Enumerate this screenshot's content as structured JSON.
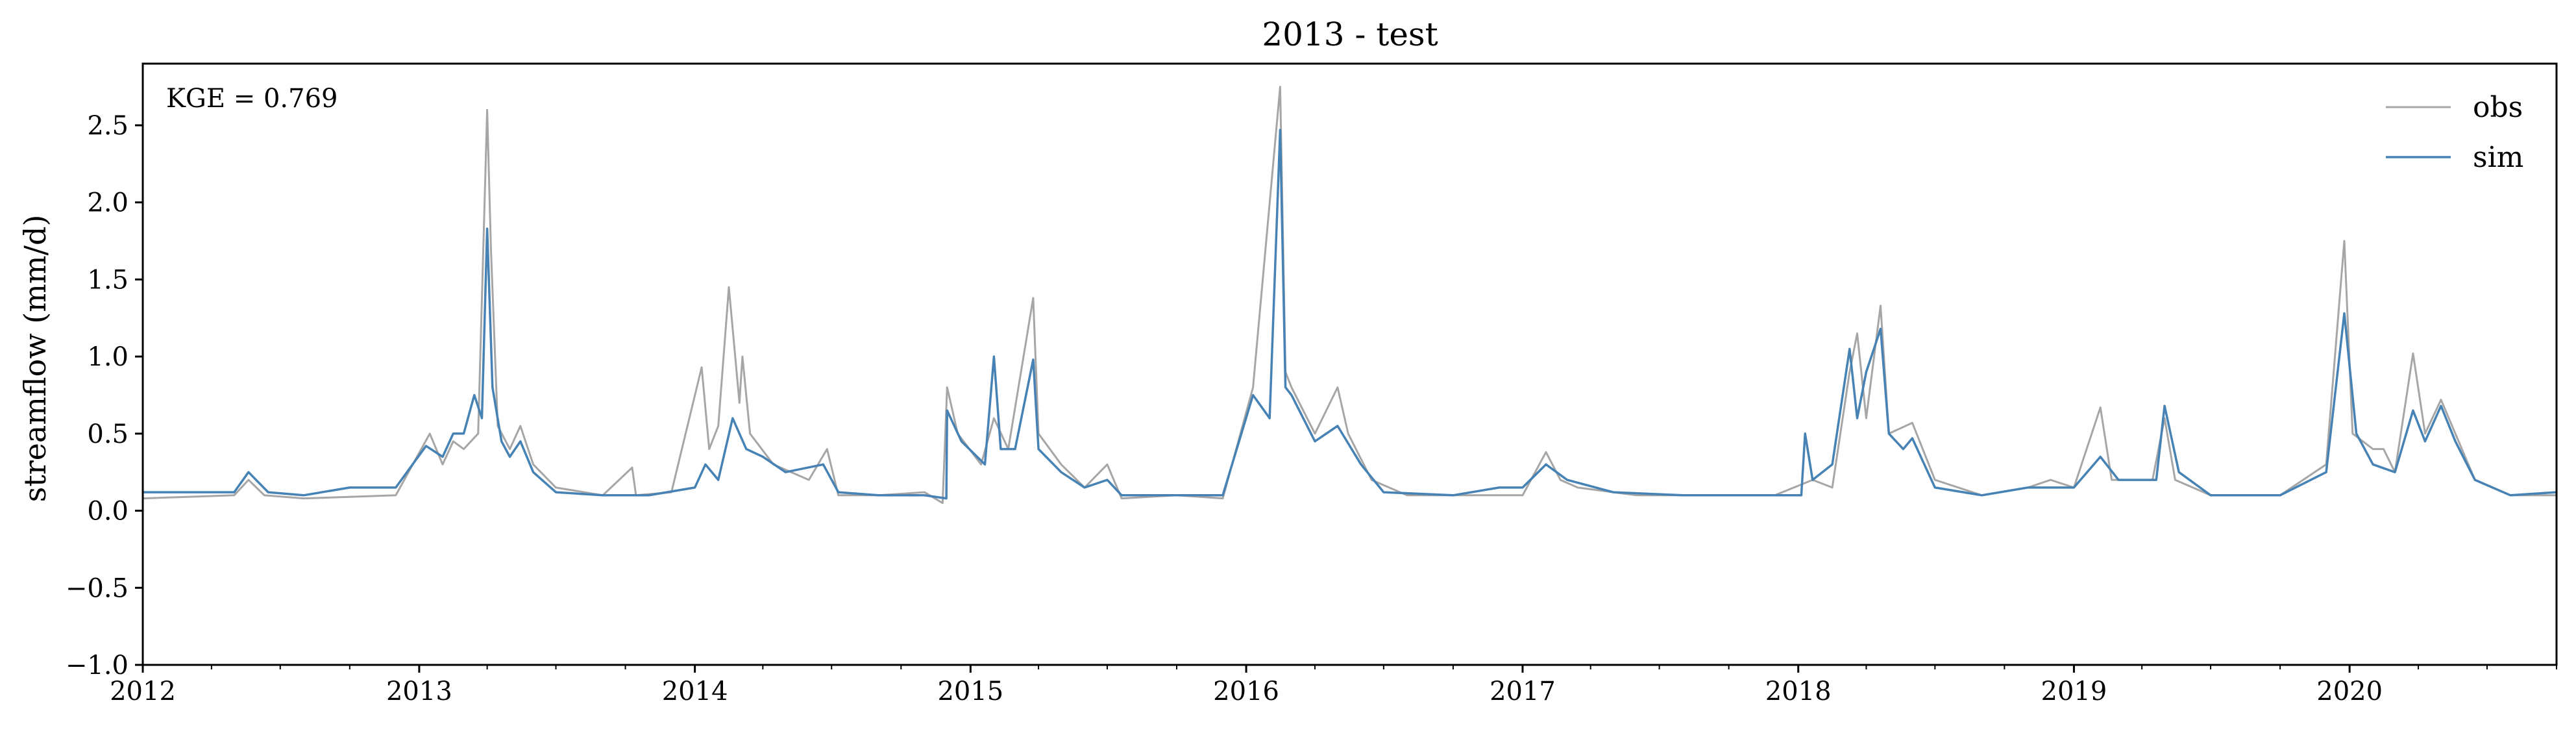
{
  "chart_data": {
    "type": "line",
    "title": "2013 - test",
    "ylabel": "streamflow (mm/d)",
    "xlabel": "",
    "annotation": "KGE = 0.769",
    "xlim": [
      "2012-01-01",
      "2020-10-01"
    ],
    "ylim": [
      -1.0,
      2.9
    ],
    "yticks": [
      -1.0,
      -0.5,
      0.0,
      0.5,
      1.0,
      1.5,
      2.0,
      2.5
    ],
    "ytick_labels": [
      "−1.0",
      "−0.5",
      "0.0",
      "0.5",
      "1.0",
      "1.5",
      "2.0",
      "2.5"
    ],
    "xticks": [
      "2012-01-01",
      "2013-01-01",
      "2014-01-01",
      "2015-01-01",
      "2016-01-01",
      "2017-01-01",
      "2018-01-01",
      "2019-01-01",
      "2020-01-01"
    ],
    "xtick_labels": [
      "2012",
      "2013",
      "2014",
      "2015",
      "2016",
      "2017",
      "2018",
      "2019",
      "2020"
    ],
    "grid": false,
    "legend_position": "top-right",
    "series": [
      {
        "name": "obs",
        "color": "#a6a6a6",
        "points": [
          [
            "2012-01-01",
            0.08
          ],
          [
            "2012-03-01",
            0.09
          ],
          [
            "2012-05-01",
            0.1
          ],
          [
            "2012-05-20",
            0.2
          ],
          [
            "2012-06-10",
            0.1
          ],
          [
            "2012-08-01",
            0.08
          ],
          [
            "2012-10-01",
            0.09
          ],
          [
            "2012-12-01",
            0.1
          ],
          [
            "2013-01-15",
            0.5
          ],
          [
            "2013-02-01",
            0.3
          ],
          [
            "2013-02-15",
            0.45
          ],
          [
            "2013-03-01",
            0.4
          ],
          [
            "2013-03-20",
            0.5
          ],
          [
            "2013-04-01",
            2.6
          ],
          [
            "2013-04-06",
            1.7
          ],
          [
            "2013-04-15",
            0.55
          ],
          [
            "2013-05-01",
            0.4
          ],
          [
            "2013-05-15",
            0.55
          ],
          [
            "2013-06-01",
            0.3
          ],
          [
            "2013-07-01",
            0.15
          ],
          [
            "2013-09-01",
            0.1
          ],
          [
            "2013-10-10",
            0.28
          ],
          [
            "2013-10-15",
            0.1
          ],
          [
            "2013-12-01",
            0.12
          ],
          [
            "2014-01-10",
            0.93
          ],
          [
            "2014-01-20",
            0.4
          ],
          [
            "2014-02-01",
            0.55
          ],
          [
            "2014-02-15",
            1.45
          ],
          [
            "2014-03-01",
            0.7
          ],
          [
            "2014-03-05",
            1.0
          ],
          [
            "2014-03-15",
            0.5
          ],
          [
            "2014-04-15",
            0.3
          ],
          [
            "2014-06-01",
            0.2
          ],
          [
            "2014-06-25",
            0.4
          ],
          [
            "2014-07-10",
            0.1
          ],
          [
            "2014-09-01",
            0.1
          ],
          [
            "2014-11-01",
            0.12
          ],
          [
            "2014-11-25",
            0.05
          ],
          [
            "2014-12-01",
            0.8
          ],
          [
            "2014-12-15",
            0.5
          ],
          [
            "2015-01-15",
            0.3
          ],
          [
            "2015-02-01",
            0.6
          ],
          [
            "2015-02-20",
            0.4
          ],
          [
            "2015-03-25",
            1.38
          ],
          [
            "2015-04-01",
            0.5
          ],
          [
            "2015-05-01",
            0.3
          ],
          [
            "2015-06-01",
            0.15
          ],
          [
            "2015-07-01",
            0.3
          ],
          [
            "2015-07-20",
            0.08
          ],
          [
            "2015-10-01",
            0.1
          ],
          [
            "2015-12-01",
            0.08
          ],
          [
            "2016-01-10",
            0.8
          ],
          [
            "2016-02-15",
            2.75
          ],
          [
            "2016-02-22",
            0.9
          ],
          [
            "2016-03-01",
            0.8
          ],
          [
            "2016-04-01",
            0.5
          ],
          [
            "2016-05-01",
            0.8
          ],
          [
            "2016-05-15",
            0.5
          ],
          [
            "2016-06-15",
            0.2
          ],
          [
            "2016-08-01",
            0.1
          ],
          [
            "2016-11-01",
            0.1
          ],
          [
            "2017-01-01",
            0.1
          ],
          [
            "2017-02-01",
            0.38
          ],
          [
            "2017-02-20",
            0.2
          ],
          [
            "2017-03-15",
            0.15
          ],
          [
            "2017-06-01",
            0.1
          ],
          [
            "2017-09-01",
            0.1
          ],
          [
            "2017-12-01",
            0.1
          ],
          [
            "2018-01-20",
            0.2
          ],
          [
            "2018-02-15",
            0.15
          ],
          [
            "2018-03-10",
            0.9
          ],
          [
            "2018-03-20",
            1.15
          ],
          [
            "2018-04-01",
            0.6
          ],
          [
            "2018-04-20",
            1.33
          ],
          [
            "2018-05-01",
            0.5
          ],
          [
            "2018-06-01",
            0.57
          ],
          [
            "2018-07-01",
            0.2
          ],
          [
            "2018-09-01",
            0.1
          ],
          [
            "2018-11-01",
            0.15
          ],
          [
            "2018-12-01",
            0.2
          ],
          [
            "2019-01-01",
            0.15
          ],
          [
            "2019-02-05",
            0.67
          ],
          [
            "2019-02-20",
            0.2
          ],
          [
            "2019-04-15",
            0.2
          ],
          [
            "2019-05-01",
            0.6
          ],
          [
            "2019-05-15",
            0.2
          ],
          [
            "2019-07-01",
            0.1
          ],
          [
            "2019-10-01",
            0.1
          ],
          [
            "2019-12-01",
            0.3
          ],
          [
            "2019-12-25",
            1.75
          ],
          [
            "2020-01-05",
            0.5
          ],
          [
            "2020-02-01",
            0.4
          ],
          [
            "2020-02-15",
            0.4
          ],
          [
            "2020-03-01",
            0.25
          ],
          [
            "2020-03-25",
            1.02
          ],
          [
            "2020-04-10",
            0.5
          ],
          [
            "2020-05-01",
            0.72
          ],
          [
            "2020-05-20",
            0.5
          ],
          [
            "2020-06-15",
            0.2
          ],
          [
            "2020-08-01",
            0.1
          ],
          [
            "2020-10-01",
            0.1
          ]
        ]
      },
      {
        "name": "sim",
        "color": "#4682b4",
        "points": [
          [
            "2012-01-01",
            0.12
          ],
          [
            "2012-03-01",
            0.12
          ],
          [
            "2012-05-01",
            0.12
          ],
          [
            "2012-05-20",
            0.25
          ],
          [
            "2012-06-15",
            0.12
          ],
          [
            "2012-08-01",
            0.1
          ],
          [
            "2012-10-01",
            0.15
          ],
          [
            "2012-12-01",
            0.15
          ],
          [
            "2013-01-10",
            0.42
          ],
          [
            "2013-02-01",
            0.35
          ],
          [
            "2013-02-15",
            0.5
          ],
          [
            "2013-03-01",
            0.5
          ],
          [
            "2013-03-15",
            0.75
          ],
          [
            "2013-03-25",
            0.6
          ],
          [
            "2013-04-01",
            1.83
          ],
          [
            "2013-04-08",
            0.8
          ],
          [
            "2013-04-20",
            0.45
          ],
          [
            "2013-05-01",
            0.35
          ],
          [
            "2013-05-15",
            0.45
          ],
          [
            "2013-06-01",
            0.25
          ],
          [
            "2013-07-01",
            0.12
          ],
          [
            "2013-09-01",
            0.1
          ],
          [
            "2013-11-01",
            0.1
          ],
          [
            "2014-01-01",
            0.15
          ],
          [
            "2014-01-15",
            0.3
          ],
          [
            "2014-02-01",
            0.2
          ],
          [
            "2014-02-20",
            0.6
          ],
          [
            "2014-03-10",
            0.4
          ],
          [
            "2014-04-01",
            0.35
          ],
          [
            "2014-05-01",
            0.25
          ],
          [
            "2014-06-20",
            0.3
          ],
          [
            "2014-07-10",
            0.12
          ],
          [
            "2014-09-01",
            0.1
          ],
          [
            "2014-11-01",
            0.1
          ],
          [
            "2014-11-30",
            0.08
          ],
          [
            "2014-12-01",
            0.65
          ],
          [
            "2014-12-20",
            0.45
          ],
          [
            "2015-01-20",
            0.3
          ],
          [
            "2015-02-01",
            1.0
          ],
          [
            "2015-02-10",
            0.4
          ],
          [
            "2015-03-01",
            0.4
          ],
          [
            "2015-03-25",
            0.98
          ],
          [
            "2015-04-01",
            0.4
          ],
          [
            "2015-05-01",
            0.25
          ],
          [
            "2015-06-01",
            0.15
          ],
          [
            "2015-07-01",
            0.2
          ],
          [
            "2015-07-20",
            0.1
          ],
          [
            "2015-10-01",
            0.1
          ],
          [
            "2015-12-01",
            0.1
          ],
          [
            "2016-01-10",
            0.75
          ],
          [
            "2016-02-01",
            0.6
          ],
          [
            "2016-02-15",
            2.47
          ],
          [
            "2016-02-22",
            0.8
          ],
          [
            "2016-03-01",
            0.75
          ],
          [
            "2016-04-01",
            0.45
          ],
          [
            "2016-05-01",
            0.55
          ],
          [
            "2016-06-01",
            0.3
          ],
          [
            "2016-07-01",
            0.12
          ],
          [
            "2016-10-01",
            0.1
          ],
          [
            "2016-12-01",
            0.15
          ],
          [
            "2017-01-01",
            0.15
          ],
          [
            "2017-02-01",
            0.3
          ],
          [
            "2017-03-01",
            0.2
          ],
          [
            "2017-05-01",
            0.12
          ],
          [
            "2017-08-01",
            0.1
          ],
          [
            "2017-11-01",
            0.1
          ],
          [
            "2018-01-05",
            0.1
          ],
          [
            "2018-01-10",
            0.5
          ],
          [
            "2018-01-20",
            0.2
          ],
          [
            "2018-02-15",
            0.3
          ],
          [
            "2018-03-10",
            1.05
          ],
          [
            "2018-03-20",
            0.6
          ],
          [
            "2018-04-01",
            0.9
          ],
          [
            "2018-04-20",
            1.18
          ],
          [
            "2018-05-01",
            0.5
          ],
          [
            "2018-05-20",
            0.4
          ],
          [
            "2018-06-01",
            0.47
          ],
          [
            "2018-07-01",
            0.15
          ],
          [
            "2018-09-01",
            0.1
          ],
          [
            "2018-11-01",
            0.15
          ],
          [
            "2018-12-01",
            0.15
          ],
          [
            "2019-01-01",
            0.15
          ],
          [
            "2019-02-05",
            0.35
          ],
          [
            "2019-03-01",
            0.2
          ],
          [
            "2019-04-20",
            0.2
          ],
          [
            "2019-05-01",
            0.68
          ],
          [
            "2019-05-20",
            0.25
          ],
          [
            "2019-07-01",
            0.1
          ],
          [
            "2019-10-01",
            0.1
          ],
          [
            "2019-12-01",
            0.25
          ],
          [
            "2019-12-25",
            1.28
          ],
          [
            "2020-01-10",
            0.5
          ],
          [
            "2020-02-01",
            0.3
          ],
          [
            "2020-03-01",
            0.25
          ],
          [
            "2020-03-25",
            0.65
          ],
          [
            "2020-04-10",
            0.45
          ],
          [
            "2020-05-01",
            0.68
          ],
          [
            "2020-05-20",
            0.45
          ],
          [
            "2020-06-15",
            0.2
          ],
          [
            "2020-08-01",
            0.1
          ],
          [
            "2020-10-01",
            0.12
          ]
        ]
      }
    ]
  }
}
